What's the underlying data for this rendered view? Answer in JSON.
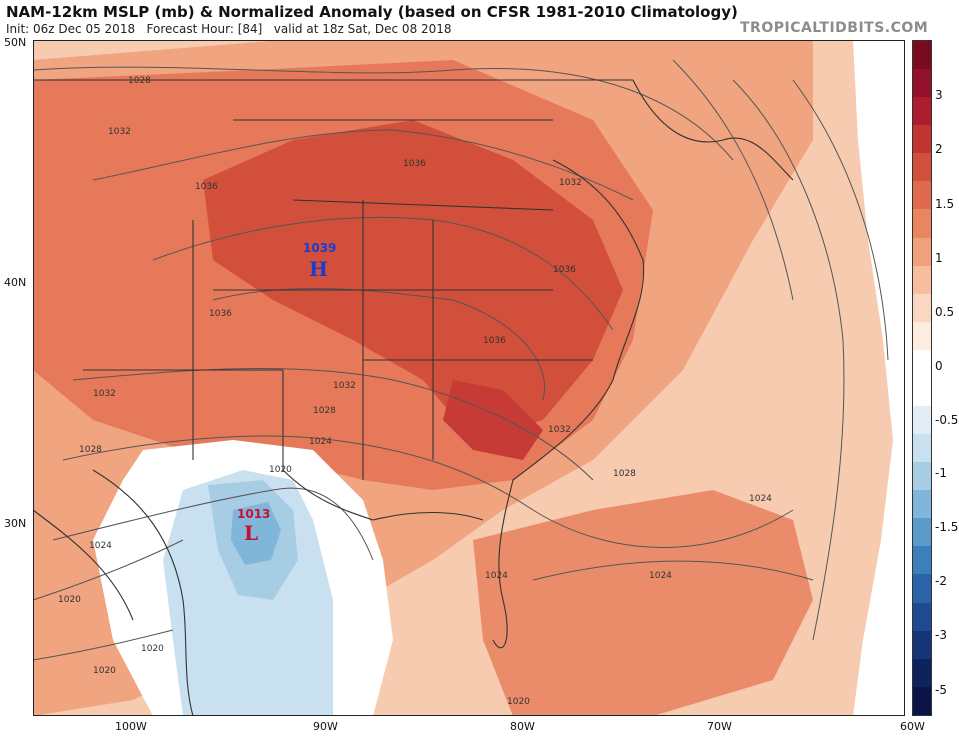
{
  "header": {
    "title": "NAM-12km MSLP (mb) & Normalized Anomaly (based on CFSR 1981-2010 Climatology)",
    "init": "Init: 06z Dec 05 2018",
    "forecast_hour": "Forecast Hour: [84]",
    "valid": "valid at 18z Sat, Dec 08 2018",
    "brand": "TROPICALTIDBITS.COM"
  },
  "axes": {
    "lat_labels": [
      "50N",
      "40N",
      "30N"
    ],
    "lon_labels": [
      "100W",
      "90W",
      "80W",
      "70W",
      "60W"
    ]
  },
  "colorbar": {
    "labels": [
      "3",
      "2",
      "1.5",
      "1",
      "0.5",
      "0",
      "-0.5",
      "-1",
      "-1.5",
      "-2",
      "-3",
      "-5"
    ],
    "colors": [
      "#7a0a1e",
      "#93102a",
      "#ab1c2f",
      "#c0352f",
      "#d24f3c",
      "#e06a4d",
      "#e9855f",
      "#f0a07b",
      "#f6bd9e",
      "#fad7c2",
      "#fdece0",
      "#ffffff",
      "#ffffff",
      "#e2eef6",
      "#c8e0ef",
      "#a7cde5",
      "#80b6d9",
      "#5a9bcb",
      "#3c7fbb",
      "#2a63a8",
      "#1f4a91",
      "#163577",
      "#0e225e",
      "#0a1446"
    ]
  },
  "map": {
    "high": {
      "pressure": "1039",
      "symbol": "H",
      "color": "#1c3ccf"
    },
    "low": {
      "pressure": "1013",
      "symbol": "L",
      "color": "#c8102e"
    },
    "isobar_labels": [
      "1028",
      "1032",
      "1036",
      "1036",
      "1036",
      "1032",
      "1036",
      "1032",
      "1028",
      "1024",
      "1020",
      "1024",
      "1020",
      "1020",
      "1020",
      "1036",
      "1032",
      "1028",
      "1024",
      "1024",
      "1024",
      "1020",
      "1028",
      "1032"
    ]
  }
}
